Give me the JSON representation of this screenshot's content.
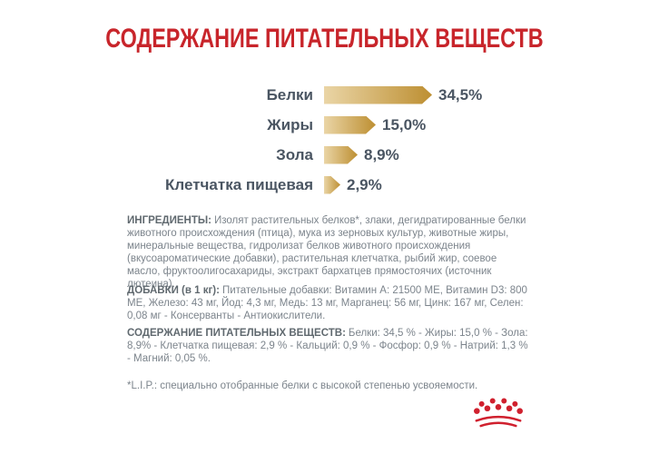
{
  "title": {
    "text": "СОДЕРЖАНИЕ ПИТАТЕЛЬНЫХ ВЕЩЕСТВ",
    "color": "#C8252B"
  },
  "chart_data": {
    "type": "bar",
    "orientation": "horizontal",
    "title": "СОДЕРЖАНИЕ ПИТАТЕЛЬНЫХ ВЕЩЕСТВ",
    "categories": [
      "Белки",
      "Жиры",
      "Зола",
      "Клетчатка пищевая"
    ],
    "values": [
      34.5,
      15.0,
      8.9,
      2.9
    ],
    "value_labels": [
      "34,5%",
      "15,0%",
      "8,9%",
      "2,9%"
    ],
    "unit": "%",
    "xlim": [
      0,
      40
    ],
    "grid": false,
    "legend": false,
    "bar_color_start": "#EAD5A6",
    "bar_color_end": "#BD8F32",
    "label_color": "#4A5562"
  },
  "paragraphs": {
    "ingredients": {
      "lead": "ИНГРЕДИЕНТЫ:",
      "body": "Изолят растительных белков*, злаки, дегидратированные белки животного происхождения (птица), мука из зерновых культур, животные жиры, минеральные вещества, гидролизат белков животного происхождения (вкусоароматические добавки), растительная клетчатка, рыбий жир, соевое масло, фруктоолигосахариды, экстракт бархатцев прямостоячих (источник лютеина)."
    },
    "additives": {
      "lead": "ДОБАВКИ (в 1 кг):",
      "body": "Питательные добавки: Витамин A: 21500 МЕ, Витамин D3: 800 МЕ, Железо: 43 мг, Йод: 4,3 мг, Медь: 13 мг, Марганец: 56 мг, Цинк: 167 мг, Селен: 0,08 мг - Консерванты - Антиокислители."
    },
    "analysis": {
      "lead": "СОДЕРЖАНИЕ ПИТАТЕЛЬНЫХ ВЕЩЕСТВ:",
      "body": "Белки: 34,5 % - Жиры: 15,0 % - Зола: 8,9% - Клетчатка пищевая: 2,9 % - Кальций: 0,9 % - Фосфор: 0,9 % - Натрий: 1,3 % - Магний: 0,05 %."
    },
    "footnote": "*L.I.P.: специально отобранные белки с высокой степенью усвояемости."
  },
  "colors": {
    "lead_text": "#60696F",
    "body_text": "#7C848C"
  },
  "logo": {
    "name": "royal-canin-crown",
    "color": "#D0202E"
  }
}
